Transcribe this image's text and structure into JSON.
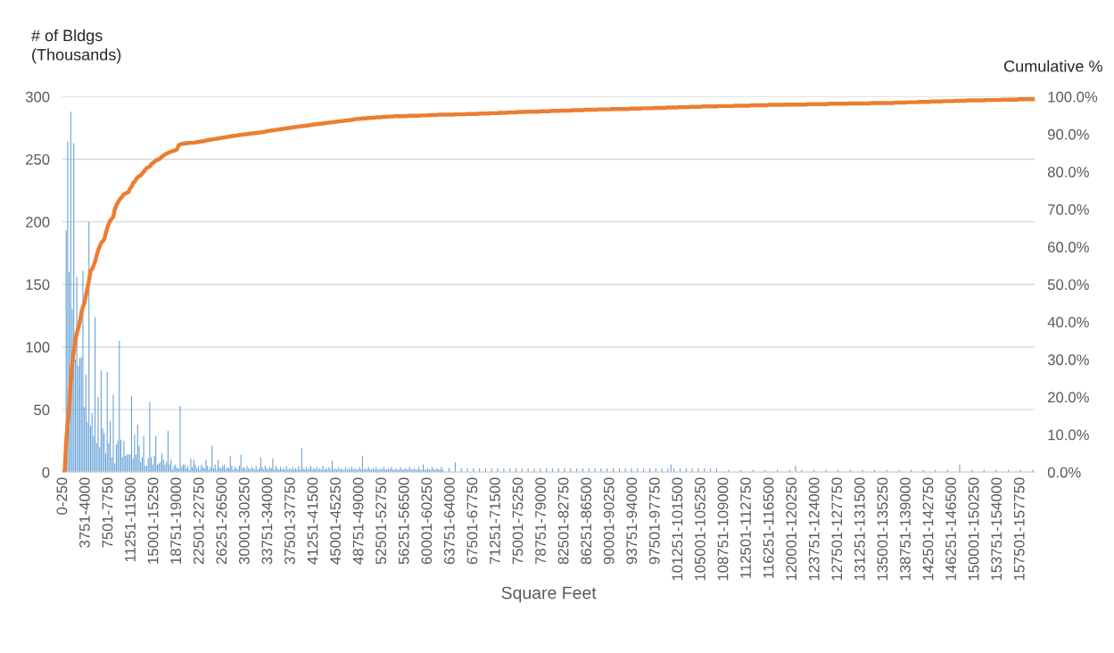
{
  "chart_data": {
    "type": "bar",
    "xlabel": "Square Feet",
    "ylabel": "# of Bldgs\n(Thousands)",
    "y2label": "Cumulative %",
    "ylim": [
      0,
      300
    ],
    "yticks": [
      0,
      50,
      100,
      150,
      200,
      250,
      300
    ],
    "y2lim": [
      0,
      100
    ],
    "y2ticks": [
      {
        "value": 0,
        "label": "0.0%"
      },
      {
        "value": 10,
        "label": "10.0%"
      },
      {
        "value": 20,
        "label": "20.0%"
      },
      {
        "value": 30,
        "label": "30.0%"
      },
      {
        "value": 40,
        "label": "40.0%"
      },
      {
        "value": 50,
        "label": "50.0%"
      },
      {
        "value": 60,
        "label": "60.0%"
      },
      {
        "value": 70,
        "label": "70.0%"
      },
      {
        "value": 80,
        "label": "80.0%"
      },
      {
        "value": 90,
        "label": "90.0%"
      },
      {
        "value": 100,
        "label": "100.0%"
      }
    ],
    "grid": "y",
    "categories": [
      "0-250",
      null,
      null,
      null,
      null,
      null,
      null,
      null,
      null,
      null,
      null,
      null,
      null,
      null,
      null,
      "3751-4000",
      null,
      null,
      null,
      null,
      null,
      null,
      null,
      null,
      null,
      null,
      null,
      null,
      null,
      null,
      "7501-7750",
      null,
      null,
      null,
      null,
      null,
      null,
      null,
      null,
      null,
      null,
      null,
      null,
      null,
      null,
      "11251-11500",
      null,
      null,
      null,
      null,
      null,
      null,
      null,
      null,
      null,
      null,
      null,
      null,
      null,
      null,
      "15001-15250",
      null,
      null,
      null,
      null,
      null,
      null,
      null,
      null,
      null,
      null,
      null,
      null,
      null,
      null,
      "18751-19000",
      null,
      null,
      null,
      null,
      null,
      null,
      null,
      null,
      null,
      null,
      null,
      null,
      null,
      null,
      "22501-22750",
      null,
      null,
      null,
      null,
      null,
      null,
      null,
      null,
      null,
      null,
      null,
      null,
      null,
      null,
      "26251-26500",
      null,
      null,
      null,
      null,
      null,
      null,
      null,
      null,
      null,
      null,
      null,
      null,
      null,
      null,
      "30001-30250",
      null,
      null,
      null,
      null,
      null,
      null,
      null,
      null,
      null,
      null,
      null,
      null,
      null,
      null,
      "33751-34000",
      null,
      null,
      null,
      null,
      null,
      null,
      null,
      null,
      null,
      null,
      null,
      null,
      null,
      null,
      "37501-37750",
      null,
      null,
      null,
      null,
      null,
      null,
      null,
      null,
      null,
      null,
      null,
      null,
      null,
      null,
      "41251-41500",
      null,
      null,
      null,
      null,
      null,
      null,
      null,
      null,
      null,
      null,
      null,
      null,
      null,
      null,
      "45001-45250",
      null,
      null,
      null,
      null,
      null,
      null,
      null,
      null,
      null,
      null,
      null,
      null,
      null,
      null,
      "48751-49000",
      null,
      null,
      null,
      null,
      null,
      null,
      null,
      null,
      null,
      null,
      null,
      null,
      null,
      null,
      "52501-52750",
      null,
      null,
      null,
      null,
      null,
      null,
      null,
      null,
      null,
      null,
      null,
      null,
      null,
      null,
      "56251-56500",
      null,
      null,
      null,
      null,
      null,
      null,
      null,
      null,
      null,
      null,
      null,
      null,
      null,
      null,
      "60001-60250",
      null,
      null,
      null,
      null,
      null,
      null,
      null,
      null,
      null,
      null,
      null,
      null,
      null,
      null,
      "63751-64000",
      null,
      null,
      null,
      null,
      null,
      null,
      null,
      null,
      null,
      null,
      null,
      null,
      null,
      null,
      "67501-67750",
      null,
      null,
      null,
      null,
      null,
      null,
      null,
      null,
      null,
      null,
      null,
      null,
      null,
      null,
      "71251-71500",
      null,
      null,
      null,
      null,
      null,
      null,
      null,
      null,
      null,
      null,
      null,
      null,
      null,
      null,
      "75001-75250",
      null,
      null,
      null,
      null,
      null,
      null,
      null,
      null,
      null,
      null,
      null,
      null,
      null,
      null,
      "78751-79000",
      null,
      null,
      null,
      null,
      null,
      null,
      null,
      null,
      null,
      null,
      null,
      null,
      null,
      null,
      "82501-82750",
      null,
      null,
      null,
      null,
      null,
      null,
      null,
      null,
      null,
      null,
      null,
      null,
      null,
      null,
      "86251-86500",
      null,
      null,
      null,
      null,
      null,
      null,
      null,
      null,
      null,
      null,
      null,
      null,
      null,
      null,
      "90001-90250",
      null,
      null,
      null,
      null,
      null,
      null,
      null,
      null,
      null,
      null,
      null,
      null,
      null,
      null,
      "93751-94000",
      null,
      null,
      null,
      null,
      null,
      null,
      null,
      null,
      null,
      null,
      null,
      null,
      null,
      null,
      "97501-97750",
      null,
      null,
      null,
      null,
      null,
      null,
      null,
      null,
      null,
      null,
      null,
      null,
      null,
      null,
      "101251-101500",
      null,
      null,
      null,
      null,
      null,
      null,
      null,
      null,
      null,
      null,
      null,
      null,
      null,
      null,
      "105001-105250",
      null,
      null,
      null,
      null,
      null,
      null,
      null,
      null,
      null,
      null,
      null,
      null,
      null,
      null,
      "108751-109000",
      null,
      null,
      null,
      null,
      null,
      null,
      null,
      null,
      null,
      null,
      null,
      null,
      null,
      null,
      "112501-112750",
      null,
      null,
      null,
      null,
      null,
      null,
      null,
      null,
      null,
      null,
      null,
      null,
      null,
      null,
      "116251-116500",
      null,
      null,
      null,
      null,
      null,
      null,
      null,
      null,
      null,
      null,
      null,
      null,
      null,
      null,
      "120001-120250",
      null,
      null,
      null,
      null,
      null,
      null,
      null,
      null,
      null,
      null,
      null,
      null,
      null,
      null,
      "123751-124000",
      null,
      null,
      null,
      null,
      null,
      null,
      null,
      null,
      null,
      null,
      null,
      null,
      null,
      null,
      "127501-127750",
      null,
      null,
      null,
      null,
      null,
      null,
      null,
      null,
      null,
      null,
      null,
      null,
      null,
      null,
      "131251-131500",
      null,
      null,
      null,
      null,
      null,
      null,
      null,
      null,
      null,
      null,
      null,
      null,
      null,
      null,
      "135001-135250",
      null,
      null,
      null,
      null,
      null,
      null,
      null,
      null,
      null,
      null,
      null,
      null,
      null,
      null,
      "138751-139000",
      null,
      null,
      null,
      null,
      null,
      null,
      null,
      null,
      null,
      null,
      null,
      null,
      null,
      null,
      "142501-142750",
      null,
      null,
      null,
      null,
      null,
      null,
      null,
      null,
      null,
      null,
      null,
      null,
      null,
      null,
      "146251-146500",
      null,
      null,
      null,
      null,
      null,
      null,
      null,
      null,
      null,
      null,
      null,
      null,
      null,
      null,
      "150001-150250",
      null,
      null,
      null,
      null,
      null,
      null,
      null,
      null,
      null,
      null,
      null,
      null,
      null,
      null,
      "153751-154000",
      null,
      null,
      null,
      null,
      null,
      null,
      null,
      null,
      null,
      null,
      null,
      null,
      null,
      null,
      "157501-157750",
      null,
      null,
      null,
      null,
      null,
      null,
      null,
      null,
      null
    ],
    "series": [
      {
        "color": "#5b9bd5",
        "values": [
          0,
          0,
          193,
          264,
          160,
          288,
          130,
          263,
          90,
          156,
          85,
          91,
          92,
          161,
          52,
          78,
          40,
          200,
          37,
          47,
          29,
          124,
          23,
          60,
          20,
          81,
          35,
          31,
          15,
          80,
          23,
          41,
          12,
          62,
          7,
          22,
          25,
          105,
          26,
          12,
          25,
          13,
          14,
          14,
          14,
          61,
          11,
          30,
          14,
          38,
          21,
          8,
          12,
          29,
          5,
          5,
          11,
          56,
          12,
          6,
          13,
          29,
          6,
          7,
          8,
          15,
          10,
          6,
          8,
          33,
          6,
          10,
          2,
          5,
          6,
          3,
          3,
          53,
          4,
          6,
          6,
          3,
          5,
          2,
          11,
          4,
          10,
          6,
          3,
          5,
          2,
          6,
          4,
          3,
          10,
          5,
          2,
          4,
          21,
          3,
          6,
          2,
          10,
          4,
          3,
          5,
          6,
          2,
          4,
          3,
          13,
          5,
          2,
          4,
          3,
          2,
          5,
          14,
          3,
          4,
          2,
          5,
          3,
          2,
          4,
          3,
          2,
          5,
          2,
          3,
          12,
          4,
          2,
          5,
          3,
          2,
          4,
          3,
          11,
          2,
          5,
          3,
          2,
          4,
          2,
          3,
          2,
          5,
          2,
          3,
          2,
          4,
          2,
          3,
          2,
          5,
          2,
          19,
          3,
          2,
          4,
          2,
          3,
          5,
          2,
          3,
          2,
          4,
          2,
          3,
          2,
          5,
          2,
          3,
          2,
          4,
          2,
          9,
          2,
          3,
          2,
          4,
          2,
          3,
          2,
          2,
          4,
          2,
          3,
          2,
          4,
          2,
          3,
          2,
          2,
          4,
          2,
          13,
          2,
          3,
          2,
          4,
          2,
          2,
          3,
          2,
          4,
          2,
          2,
          3,
          2,
          4,
          2,
          2,
          3,
          2,
          4,
          2,
          2,
          3,
          2,
          2,
          4,
          2,
          2,
          3,
          2,
          2,
          4,
          2,
          2,
          3,
          2,
          2,
          4,
          2,
          2,
          6,
          2,
          2,
          3,
          2,
          2,
          4,
          2,
          2,
          3,
          2,
          2,
          4,
          2,
          0,
          0,
          0,
          3,
          0,
          0,
          0,
          8,
          0,
          0,
          0,
          3,
          0,
          0,
          0,
          3,
          0,
          0,
          0,
          3,
          0,
          0,
          0,
          3,
          0,
          0,
          0,
          3,
          0,
          0,
          0,
          3,
          0,
          0,
          0,
          3,
          0,
          0,
          0,
          3,
          0,
          0,
          0,
          3,
          0,
          0,
          0,
          3,
          0,
          0,
          0,
          3,
          0,
          0,
          0,
          3,
          0,
          0,
          0,
          3,
          0,
          0,
          0,
          3,
          0,
          0,
          0,
          3,
          0,
          0,
          0,
          3,
          0,
          0,
          0,
          3,
          0,
          0,
          0,
          3,
          0,
          0,
          0,
          3,
          0,
          0,
          0,
          3,
          0,
          0,
          0,
          3,
          0,
          0,
          0,
          3,
          0,
          0,
          0,
          3,
          0,
          0,
          0,
          3,
          0,
          0,
          0,
          3,
          0,
          0,
          0,
          3,
          0,
          0,
          0,
          3,
          0,
          0,
          0,
          3,
          0,
          0,
          0,
          3,
          0,
          0,
          0,
          3,
          0,
          0,
          0,
          3,
          0,
          0,
          0,
          3,
          0,
          0,
          0,
          3,
          0,
          0,
          0,
          3,
          0,
          0,
          0,
          3,
          0,
          6,
          0,
          3,
          0,
          0,
          0,
          3,
          0,
          0,
          0,
          3,
          0,
          0,
          0,
          3,
          0,
          0,
          0,
          3,
          0,
          0,
          0,
          3,
          0,
          0,
          0,
          3,
          0,
          0,
          0,
          3,
          0,
          0,
          0,
          0,
          0,
          0,
          0,
          2,
          0,
          0,
          0,
          0,
          0,
          0,
          0,
          2,
          0,
          0,
          0,
          0,
          0,
          0,
          0,
          2,
          0,
          0,
          0,
          0,
          0,
          0,
          0,
          2,
          0,
          0,
          0,
          0,
          0,
          0,
          0,
          2,
          0,
          0,
          0,
          0,
          0,
          0,
          0,
          2,
          0,
          0,
          0,
          5,
          0,
          0,
          0,
          2,
          0,
          0,
          0,
          0,
          0,
          0,
          0,
          2,
          0,
          0,
          0,
          0,
          0,
          0,
          0,
          2,
          0,
          0,
          0,
          0,
          0,
          0,
          0,
          2,
          0,
          0,
          0,
          0,
          0,
          0,
          0,
          2,
          0,
          0,
          0,
          0,
          0,
          0,
          0,
          2,
          0,
          0,
          0,
          0,
          0,
          0,
          0,
          2,
          0,
          0,
          0,
          0,
          0,
          0,
          0,
          2,
          0,
          0,
          0,
          0,
          0,
          0,
          0,
          2,
          0,
          0,
          0,
          0,
          0,
          0,
          0,
          2,
          0,
          0,
          0,
          0,
          0,
          0,
          0,
          2,
          0,
          0,
          0,
          0,
          0,
          0,
          0,
          2,
          0,
          0,
          0,
          0,
          0,
          0,
          0,
          2,
          0,
          0,
          0,
          0,
          0,
          0,
          0,
          6,
          0,
          0,
          0,
          0,
          0,
          0,
          0,
          2,
          0,
          0,
          0,
          0,
          0,
          0,
          0,
          2,
          0,
          0,
          0,
          0,
          0,
          0,
          0,
          2,
          0,
          0,
          0,
          0,
          0,
          0,
          0,
          2,
          0,
          0,
          0,
          0,
          0,
          0,
          0,
          2,
          0,
          0,
          0,
          0,
          0,
          0,
          0,
          2,
          0
        ]
      },
      {
        "type": "line",
        "axis": "y2",
        "color": "#ed7d31",
        "values": [
          0,
          0,
          8,
          13,
          17,
          24,
          29,
          32,
          35,
          37,
          38.5,
          40,
          42.5,
          44,
          45,
          47,
          49,
          51,
          53.6,
          54,
          55,
          56,
          57.6,
          59,
          60,
          61,
          61.5,
          62,
          63.5,
          65,
          66,
          67,
          67.5,
          68,
          70,
          71,
          71.8,
          72.5,
          73,
          73.4,
          74,
          74.2,
          74.4,
          74.6,
          75.5,
          76,
          77,
          77.3,
          78,
          78.5,
          78.8,
          79,
          79.5,
          80,
          80.5,
          81,
          81.2,
          81.4,
          82,
          82.3,
          82.6,
          83,
          83.2,
          83.3,
          83.6,
          84,
          84.3,
          84.6,
          84.8,
          85,
          85.2,
          85.4,
          85.5,
          85.6,
          85.7,
          86,
          87,
          87.3,
          87.4,
          87.5,
          87.5,
          87.6,
          87.6,
          87.7,
          87.7,
          87.7,
          87.7,
          87.8,
          87.9,
          87.9,
          88.0,
          88.1,
          88.1,
          88.2,
          88.3,
          88.4,
          88.5,
          88.5,
          88.6,
          88.7,
          88.7,
          88.8,
          88.9,
          88.9,
          89.0,
          89.1,
          89.1,
          89.2,
          89.3,
          89.3,
          89.4,
          89.5,
          89.5,
          89.6,
          89.6,
          89.7,
          89.8,
          89.8,
          89.9,
          89.9,
          90.0,
          90.0,
          90.1,
          90.1,
          90.2,
          90.2,
          90.3,
          90.3,
          90.4,
          90.4,
          90.5,
          90.5,
          90.6,
          90.7,
          90.8,
          90.8,
          90.9,
          91.0,
          91.0,
          91.1,
          91.1,
          91.2,
          91.3,
          91.3,
          91.4,
          91.4,
          91.5,
          91.6,
          91.6,
          91.7,
          91.7,
          91.8,
          91.9,
          91.9,
          92.0,
          92.0,
          92.1,
          92.1,
          92.2,
          92.2,
          92.3,
          92.3,
          92.4,
          92.5,
          92.5,
          92.6,
          92.6,
          92.7,
          92.7,
          92.8,
          92.8,
          92.9,
          92.9,
          93.0,
          93.0,
          93.1,
          93.1,
          93.2,
          93.2,
          93.3,
          93.3,
          93.4,
          93.4,
          93.5,
          93.5,
          93.6,
          93.6,
          93.7,
          93.7,
          93.8,
          93.8,
          93.9,
          94.0,
          94.0,
          94.1,
          94.1,
          94.1,
          94.2,
          94.2,
          94.2,
          94.3,
          94.3,
          94.3,
          94.4,
          94.4,
          94.4,
          94.5,
          94.5,
          94.5,
          94.5,
          94.6,
          94.6,
          94.6,
          94.6,
          94.7,
          94.7,
          94.7,
          94.7,
          94.8,
          94.8,
          94.8,
          94.8,
          94.8,
          94.8,
          94.8,
          94.8,
          94.8,
          94.9,
          94.9,
          94.9,
          94.9,
          94.9,
          94.9,
          94.9,
          94.9,
          95.0,
          95.0,
          95.0,
          95.0,
          95.0,
          95.0,
          95.1,
          95.1,
          95.1,
          95.1,
          95.1,
          95.1,
          95.2,
          95.2,
          95.2,
          95.2,
          95.2,
          95.2,
          95.2,
          95.2,
          95.2,
          95.2,
          95.2,
          95.3,
          95.3,
          95.3,
          95.3,
          95.3,
          95.3,
          95.3,
          95.3,
          95.4,
          95.4,
          95.4,
          95.4,
          95.4,
          95.4,
          95.4,
          95.4,
          95.5,
          95.5,
          95.5,
          95.5,
          95.5,
          95.5,
          95.5,
          95.6,
          95.6,
          95.6,
          95.6,
          95.6,
          95.6,
          95.7,
          95.7,
          95.7,
          95.7,
          95.7,
          95.7,
          95.8,
          95.8,
          95.8,
          95.8,
          95.8,
          95.8,
          95.9,
          95.9,
          95.9,
          95.9,
          95.9,
          95.9,
          96.0,
          96.0,
          96.0,
          96.0,
          96.0,
          96.0,
          96.0,
          96.0,
          96.0,
          96.1,
          96.1,
          96.1,
          96.1,
          96.1,
          96.1,
          96.1,
          96.2,
          96.2,
          96.2,
          96.2,
          96.2,
          96.2,
          96.2,
          96.3,
          96.3,
          96.3,
          96.3,
          96.3,
          96.3,
          96.3,
          96.4,
          96.4,
          96.4,
          96.4,
          96.4,
          96.4,
          96.4,
          96.4,
          96.5,
          96.5,
          96.5,
          96.5,
          96.5,
          96.5,
          96.5,
          96.5,
          96.5,
          96.6,
          96.6,
          96.6,
          96.6,
          96.6,
          96.6,
          96.6,
          96.6,
          96.6,
          96.7,
          96.7,
          96.7,
          96.7,
          96.7,
          96.7,
          96.7,
          96.7,
          96.7,
          96.7,
          96.7,
          96.7,
          96.8,
          96.8,
          96.8,
          96.8,
          96.8,
          96.8,
          96.8,
          96.8,
          96.9,
          96.9,
          96.9,
          96.9,
          96.9,
          96.9,
          96.9,
          96.9,
          97.0,
          97.0,
          97.0,
          97.0,
          97.0,
          97.0,
          97.0,
          97.0,
          97.1,
          97.1,
          97.1,
          97.1,
          97.1,
          97.1,
          97.1,
          97.1,
          97.2,
          97.2,
          97.2,
          97.2,
          97.2,
          97.2,
          97.2,
          97.2,
          97.3,
          97.3,
          97.3,
          97.3,
          97.3,
          97.3,
          97.3,
          97.3,
          97.4,
          97.4,
          97.4,
          97.4,
          97.4,
          97.4,
          97.4,
          97.4,
          97.4,
          97.4,
          97.5,
          97.5,
          97.5,
          97.5,
          97.5,
          97.5,
          97.5,
          97.5,
          97.5,
          97.5,
          97.5,
          97.6,
          97.6,
          97.6,
          97.6,
          97.6,
          97.6,
          97.6,
          97.6,
          97.6,
          97.6,
          97.6,
          97.7,
          97.7,
          97.7,
          97.7,
          97.7,
          97.7,
          97.7,
          97.7,
          97.7,
          97.7,
          97.7,
          97.8,
          97.8,
          97.8,
          97.8,
          97.8,
          97.8,
          97.8,
          97.8,
          97.8,
          97.8,
          97.8,
          97.9,
          97.9,
          97.9,
          97.9,
          97.9,
          97.9,
          97.9,
          97.9,
          97.9,
          97.9,
          97.9,
          97.9,
          97.9,
          97.9,
          97.9,
          98.0,
          98.0,
          98.0,
          98.0,
          98.0,
          98.0,
          98.0,
          98.0,
          98.0,
          98.0,
          98.0,
          98.0,
          98.0,
          98.0,
          98.1,
          98.1,
          98.1,
          98.1,
          98.1,
          98.1,
          98.1,
          98.1,
          98.1,
          98.1,
          98.1,
          98.1,
          98.1,
          98.1,
          98.2,
          98.2,
          98.2,
          98.2,
          98.2,
          98.2,
          98.2,
          98.2,
          98.2,
          98.2,
          98.2,
          98.2,
          98.2,
          98.2,
          98.3,
          98.3,
          98.3,
          98.3,
          98.3,
          98.3,
          98.3,
          98.3,
          98.3,
          98.3,
          98.3,
          98.3,
          98.3,
          98.3,
          98.3,
          98.4,
          98.4,
          98.4,
          98.4,
          98.4,
          98.4,
          98.4,
          98.4,
          98.5,
          98.5,
          98.5,
          98.5,
          98.5,
          98.5,
          98.5,
          98.5,
          98.6,
          98.6,
          98.6,
          98.6,
          98.6,
          98.6,
          98.6,
          98.6,
          98.7,
          98.7,
          98.7,
          98.7,
          98.7,
          98.7,
          98.7,
          98.7,
          98.8,
          98.8,
          98.8,
          98.8,
          98.8,
          98.8,
          98.8,
          98.8,
          98.9,
          98.9,
          98.9,
          98.9,
          98.9,
          98.9,
          98.9,
          98.9,
          99.0,
          99.0,
          99.0,
          99.0,
          99.0,
          99.0,
          99.0,
          99.0,
          99.0,
          99.0,
          99.0,
          99.0,
          99.1,
          99.1,
          99.1,
          99.1,
          99.1,
          99.1,
          99.1,
          99.1,
          99.1,
          99.1,
          99.1,
          99.2,
          99.2,
          99.2,
          99.2,
          99.2,
          99.2,
          99.2,
          99.2,
          99.2,
          99.2,
          99.2,
          99.3,
          99.3,
          99.3,
          99.3,
          99.3,
          99.3,
          99.3,
          99.3,
          99.3,
          99.3,
          99.3
        ]
      }
    ]
  }
}
